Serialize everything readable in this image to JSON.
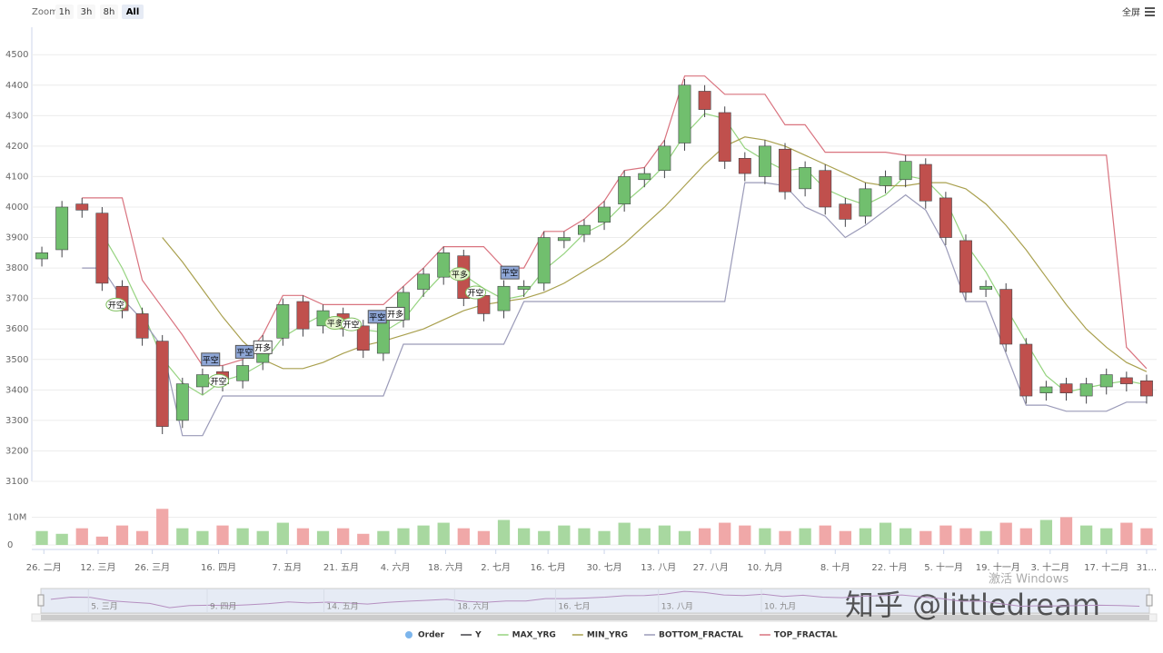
{
  "toolbar": {
    "zoom_label": "Zoom",
    "buttons": [
      "1h",
      "3h",
      "8h",
      "All"
    ],
    "fullscreen": "全屏"
  },
  "chart_data": {
    "type": "candlestick",
    "xlim": [
      -0.5,
      55.5
    ],
    "xticks": [
      {
        "value": 0.1,
        "label": "26. 二月"
      },
      {
        "value": 2.8,
        "label": "12. 三月"
      },
      {
        "value": 5.5,
        "label": "26. 三月"
      },
      {
        "value": 8.8,
        "label": "16. 四月"
      },
      {
        "value": 12.2,
        "label": "7. 五月"
      },
      {
        "value": 14.9,
        "label": "21. 五月"
      },
      {
        "value": 17.6,
        "label": "4. 六月"
      },
      {
        "value": 20.1,
        "label": "18. 六月"
      },
      {
        "value": 22.6,
        "label": "2. 七月"
      },
      {
        "value": 25.2,
        "label": "16. 七月"
      },
      {
        "value": 28,
        "label": "30. 七月"
      },
      {
        "value": 30.7,
        "label": "13. 八月"
      },
      {
        "value": 33.3,
        "label": "27. 八月"
      },
      {
        "value": 36,
        "label": "10. 九月"
      },
      {
        "value": 39.5,
        "label": "8. 十月"
      },
      {
        "value": 42.2,
        "label": "22. 十月"
      },
      {
        "value": 44.9,
        "label": "5. 十一月"
      },
      {
        "value": 47.6,
        "label": "19. 十一月"
      },
      {
        "value": 50.2,
        "label": "3. 十二月"
      },
      {
        "value": 53,
        "label": "17. 十二月"
      },
      {
        "value": 55,
        "label": "31…"
      }
    ],
    "ylim": [
      3100,
      4590
    ],
    "yticks": [
      3100,
      3200,
      3300,
      3400,
      3500,
      3600,
      3700,
      3800,
      3900,
      4000,
      4100,
      4200,
      4300,
      4400,
      4500
    ],
    "grid": true,
    "candles": {
      "name": "Y",
      "color": "#434348",
      "up_color": "#71bf6e",
      "down_color": "#c0504d",
      "open": [
        3830,
        3860,
        4010,
        3980,
        3740,
        3650,
        3560,
        3300,
        3410,
        3460,
        3430,
        3490,
        3570,
        3690,
        3610,
        3650,
        3610,
        3520,
        3630,
        3730,
        3770,
        3840,
        3710,
        3660,
        3730,
        3750,
        3890,
        3910,
        3950,
        4010,
        4090,
        4120,
        4210,
        4380,
        4310,
        4160,
        4100,
        4190,
        4060,
        4120,
        4010,
        3970,
        4070,
        4090,
        4140,
        4030,
        3890,
        3730,
        3730,
        3550,
        3390,
        3420,
        3380,
        3410,
        3440,
        3430
      ],
      "high": [
        3870,
        4020,
        4030,
        4000,
        3760,
        3670,
        3580,
        3440,
        3470,
        3480,
        3500,
        3580,
        3700,
        3710,
        3680,
        3670,
        3630,
        3660,
        3740,
        3800,
        3870,
        3860,
        3730,
        3760,
        3760,
        3920,
        3920,
        3960,
        4020,
        4120,
        4130,
        4220,
        4420,
        4400,
        4330,
        4180,
        4220,
        4210,
        4150,
        4140,
        4030,
        4080,
        4120,
        4170,
        4160,
        4050,
        3910,
        3760,
        3750,
        3570,
        3430,
        3440,
        3440,
        3470,
        3460,
        3450
      ],
      "low": [
        3805,
        3835,
        3965,
        3725,
        3635,
        3545,
        3255,
        3275,
        3385,
        3395,
        3405,
        3465,
        3545,
        3575,
        3585,
        3575,
        3505,
        3495,
        3605,
        3705,
        3745,
        3675,
        3625,
        3635,
        3705,
        3725,
        3865,
        3885,
        3925,
        3985,
        4065,
        4095,
        4185,
        4295,
        4125,
        4085,
        4075,
        4025,
        4035,
        3975,
        3935,
        3945,
        4045,
        4065,
        3995,
        3875,
        3695,
        3705,
        3525,
        3355,
        3365,
        3365,
        3355,
        3385,
        3395,
        3355
      ],
      "close": [
        3850,
        4000,
        3990,
        3750,
        3660,
        3570,
        3280,
        3420,
        3450,
        3420,
        3480,
        3560,
        3680,
        3600,
        3660,
        3600,
        3530,
        3640,
        3720,
        3780,
        3850,
        3700,
        3650,
        3740,
        3740,
        3900,
        3900,
        3940,
        4000,
        4100,
        4110,
        4200,
        4400,
        4320,
        4150,
        4110,
        4200,
        4050,
        4130,
        4000,
        3960,
        4060,
        4100,
        4150,
        4020,
        3900,
        3720,
        3740,
        3550,
        3380,
        3410,
        3390,
        3420,
        3450,
        3420,
        3380
      ]
    },
    "series": [
      {
        "name": "MAX_YRG",
        "color": "#95d37f",
        "values": [
          null,
          null,
          null,
          3913,
          3800,
          3660,
          3503,
          3423,
          3383,
          3430,
          3450,
          3487,
          3573,
          3613,
          3647,
          3620,
          3597,
          3590,
          3630,
          3713,
          3783,
          3777,
          3733,
          3697,
          3710,
          3793,
          3847,
          3913,
          3947,
          4013,
          4070,
          4137,
          4237,
          4307,
          4290,
          4193,
          4153,
          4120,
          4127,
          4060,
          4030,
          4007,
          4040,
          4103,
          4090,
          4023,
          3880,
          3787,
          3670,
          3557,
          3447,
          3393,
          3407,
          3420,
          3430,
          3417
        ]
      },
      {
        "name": "MIN_YRG",
        "color": "#a9a04e",
        "values": [
          null,
          null,
          null,
          null,
          null,
          null,
          3900,
          3820,
          3730,
          3640,
          3560,
          3500,
          3470,
          3470,
          3490,
          3520,
          3545,
          3560,
          3580,
          3600,
          3630,
          3660,
          3680,
          3690,
          3700,
          3720,
          3750,
          3790,
          3830,
          3880,
          3940,
          4000,
          4070,
          4140,
          4200,
          4230,
          4220,
          4200,
          4170,
          4140,
          4110,
          4080,
          4070,
          4070,
          4080,
          4080,
          4060,
          4010,
          3940,
          3860,
          3770,
          3680,
          3600,
          3540,
          3490,
          3460
        ]
      },
      {
        "name": "BOTTOM_FRACTAL",
        "color": "#9a9ab8",
        "values": [
          null,
          null,
          3800,
          3800,
          3700,
          3630,
          3540,
          3250,
          3250,
          3380,
          3380,
          3380,
          3380,
          3380,
          3380,
          3380,
          3380,
          3380,
          3550,
          3550,
          3550,
          3550,
          3550,
          3550,
          3690,
          3690,
          3690,
          3690,
          3690,
          3690,
          3690,
          3690,
          3690,
          3690,
          3690,
          4080,
          4080,
          4070,
          4000,
          3970,
          3900,
          3940,
          3990,
          4040,
          3990,
          3870,
          3690,
          3690,
          3520,
          3350,
          3350,
          3330,
          3330,
          3330,
          3360,
          3360
        ]
      },
      {
        "name": "TOP_FRACTAL",
        "color": "#d9737f",
        "values": [
          null,
          null,
          4030,
          4030,
          4030,
          3760,
          3670,
          3580,
          3480,
          3480,
          3500,
          3580,
          3710,
          3710,
          3680,
          3680,
          3680,
          3680,
          3740,
          3800,
          3870,
          3870,
          3870,
          3800,
          3800,
          3920,
          3920,
          3960,
          4020,
          4120,
          4130,
          4220,
          4430,
          4430,
          4370,
          4370,
          4370,
          4270,
          4270,
          4180,
          4180,
          4180,
          4180,
          4170,
          4170,
          4170,
          4170,
          4170,
          4170,
          4170,
          4170,
          4170,
          4170,
          4170,
          3540,
          3470
        ]
      }
    ],
    "orders": {
      "name": "Order",
      "color": "#7cb5ec",
      "points": [
        {
          "x": 3.7,
          "y": 3680,
          "label": "开空",
          "shape": "circle",
          "fill": "#ffffff"
        },
        {
          "x": 8.4,
          "y": 3500,
          "label": "平空",
          "shape": "flag",
          "fill": "#8ea6d6"
        },
        {
          "x": 8.8,
          "y": 3430,
          "label": "开空",
          "shape": "circle",
          "fill": "#ffffff"
        },
        {
          "x": 10.1,
          "y": 3525,
          "label": "平空",
          "shape": "flag",
          "fill": "#8ea6d6"
        },
        {
          "x": 11,
          "y": 3540,
          "label": "开多",
          "shape": "flag",
          "fill": "#ffffff"
        },
        {
          "x": 14.6,
          "y": 3620,
          "label": "平多",
          "shape": "circle",
          "fill": "#e6f5d0"
        },
        {
          "x": 15.4,
          "y": 3615,
          "label": "开空",
          "shape": "circle",
          "fill": "#ffffff"
        },
        {
          "x": 16.7,
          "y": 3640,
          "label": "平空",
          "shape": "flag",
          "fill": "#8ea6d6"
        },
        {
          "x": 17.6,
          "y": 3650,
          "label": "开多",
          "shape": "flag",
          "fill": "#ffffff"
        },
        {
          "x": 20.8,
          "y": 3780,
          "label": "平多",
          "shape": "circle",
          "fill": "#e6f5d0"
        },
        {
          "x": 21.6,
          "y": 3720,
          "label": "开空",
          "shape": "circle",
          "fill": "#ffffff"
        },
        {
          "x": 23.3,
          "y": 3785,
          "label": "平空",
          "shape": "flag",
          "fill": "#8ea6d6"
        }
      ]
    },
    "volume": {
      "ylim": [
        0,
        18000000
      ],
      "yticks": [
        0,
        {
          "value": 10000000,
          "label": "10M"
        }
      ],
      "values": [
        5000000,
        4000000,
        6000000,
        3000000,
        7000000,
        5000000,
        13000000,
        6000000,
        5000000,
        7000000,
        6000000,
        5000000,
        8000000,
        6000000,
        5000000,
        6000000,
        4000000,
        5000000,
        6000000,
        7000000,
        8000000,
        6000000,
        5000000,
        9000000,
        6000000,
        5000000,
        7000000,
        6000000,
        5000000,
        8000000,
        6000000,
        7000000,
        5000000,
        6000000,
        8000000,
        7000000,
        6000000,
        5000000,
        6000000,
        7000000,
        5000000,
        6000000,
        8000000,
        6000000,
        5000000,
        7000000,
        6000000,
        5000000,
        8000000,
        6000000,
        9000000,
        10000000,
        7000000,
        6000000,
        8000000,
        6000000
      ]
    },
    "navigator": {
      "xticks": [
        {
          "value": 1.9,
          "label": "5. 三月"
        },
        {
          "value": 7.9,
          "label": "9. 四月"
        },
        {
          "value": 13.8,
          "label": "14. 五月"
        },
        {
          "value": 20.4,
          "label": "18. 六月"
        },
        {
          "value": 25.5,
          "label": "16. 七月"
        },
        {
          "value": 30.7,
          "label": "13. 八月"
        },
        {
          "value": 35.9,
          "label": "10. 九月"
        }
      ],
      "color": "#b58fc0"
    }
  },
  "watermarks": [
    "激活 Windows",
    "知乎 @littledream"
  ]
}
